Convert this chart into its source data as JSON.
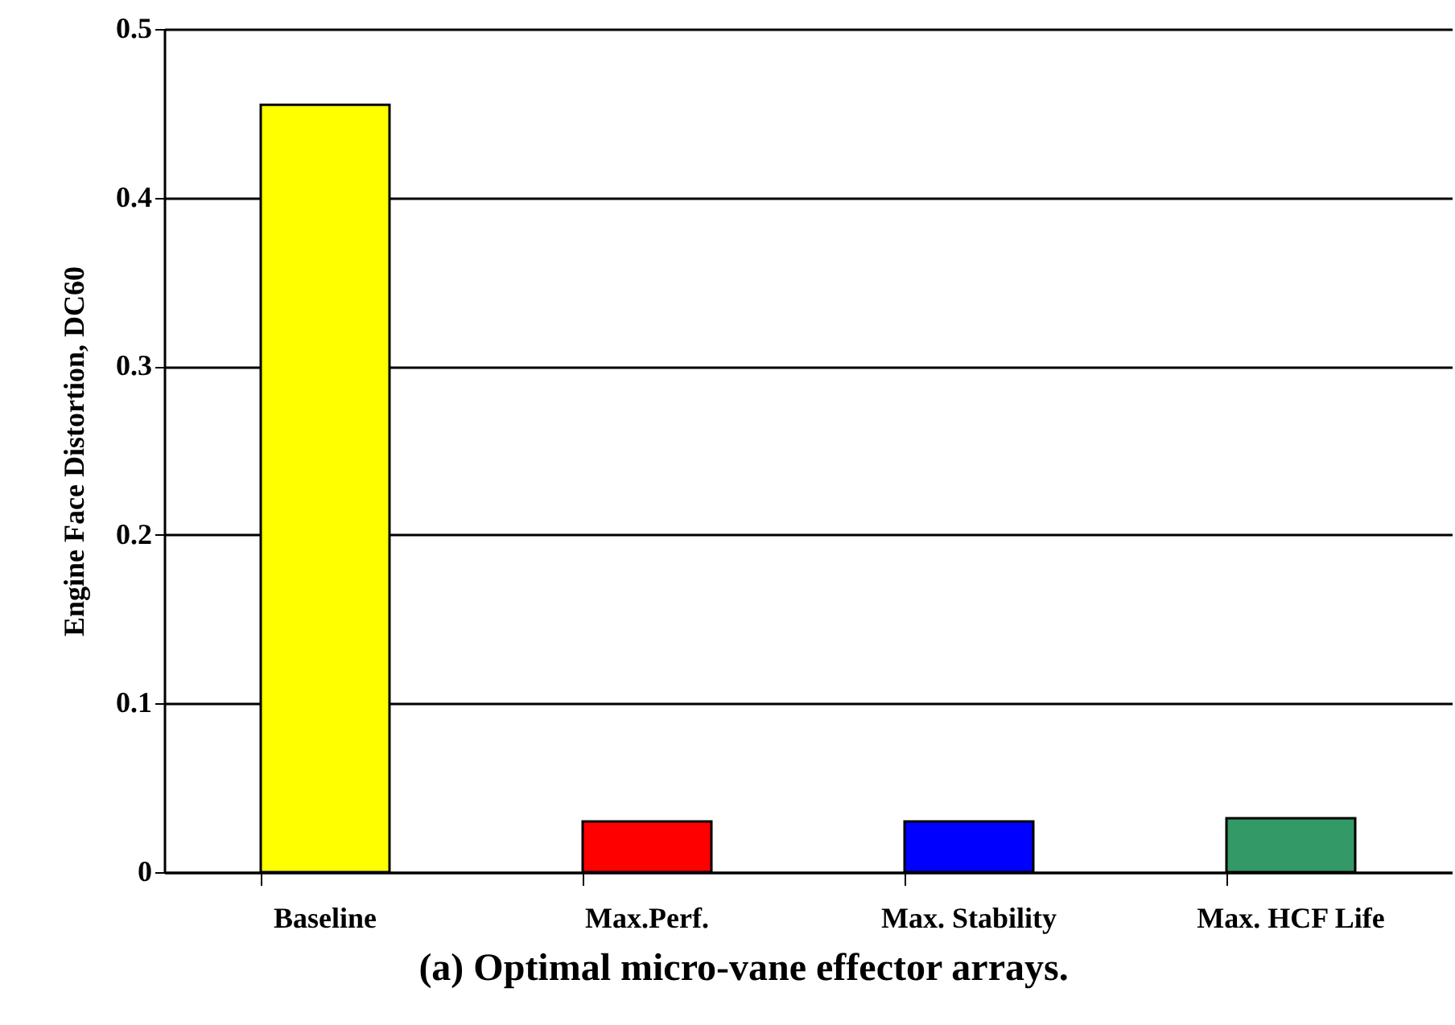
{
  "chart_data": {
    "type": "bar",
    "title": "(a) Optimal micro-vane effector arrays.",
    "ylabel": "Engine Face Distortion, DC60",
    "categories": [
      "Baseline",
      "Max.Perf.",
      "Max. Stability",
      "Max. HCF Life"
    ],
    "values": [
      0.455,
      0.03,
      0.03,
      0.032
    ],
    "colors": [
      "#ffff00",
      "#ff0000",
      "#0000ff",
      "#339966"
    ],
    "ylim": [
      0,
      0.5
    ],
    "yticks": [
      0,
      0.1,
      0.2,
      0.3,
      0.4,
      0.5
    ],
    "grid": "y"
  }
}
